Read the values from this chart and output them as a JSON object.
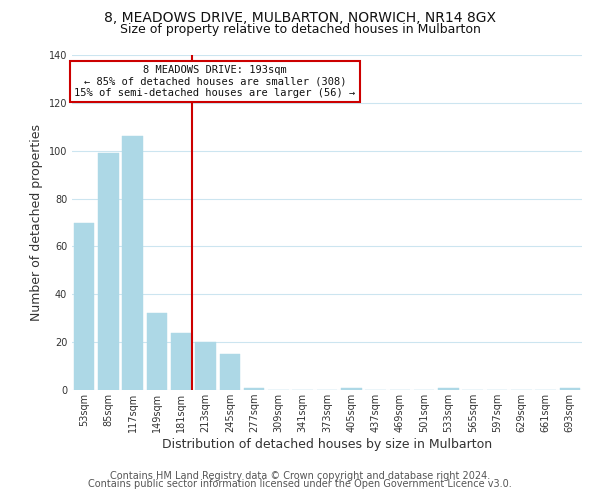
{
  "title": "8, MEADOWS DRIVE, MULBARTON, NORWICH, NR14 8GX",
  "subtitle": "Size of property relative to detached houses in Mulbarton",
  "xlabel": "Distribution of detached houses by size in Mulbarton",
  "ylabel": "Number of detached properties",
  "bar_labels": [
    "53sqm",
    "85sqm",
    "117sqm",
    "149sqm",
    "181sqm",
    "213sqm",
    "245sqm",
    "277sqm",
    "309sqm",
    "341sqm",
    "373sqm",
    "405sqm",
    "437sqm",
    "469sqm",
    "501sqm",
    "533sqm",
    "565sqm",
    "597sqm",
    "629sqm",
    "661sqm",
    "693sqm"
  ],
  "bar_values": [
    70,
    99,
    106,
    32,
    24,
    20,
    15,
    1,
    0,
    0,
    0,
    1,
    0,
    0,
    0,
    1,
    0,
    0,
    0,
    0,
    1
  ],
  "bar_color": "#add8e6",
  "vline_color": "#cc0000",
  "annotation_text": "8 MEADOWS DRIVE: 193sqm\n← 85% of detached houses are smaller (308)\n15% of semi-detached houses are larger (56) →",
  "annotation_box_color": "#ffffff",
  "annotation_box_edge": "#cc0000",
  "ylim": [
    0,
    140
  ],
  "footer1": "Contains HM Land Registry data © Crown copyright and database right 2024.",
  "footer2": "Contains public sector information licensed under the Open Government Licence v3.0.",
  "background_color": "#ffffff",
  "grid_color": "#cce5f0",
  "title_fontsize": 10,
  "subtitle_fontsize": 9,
  "axis_label_fontsize": 9,
  "tick_fontsize": 7,
  "footer_fontsize": 7
}
